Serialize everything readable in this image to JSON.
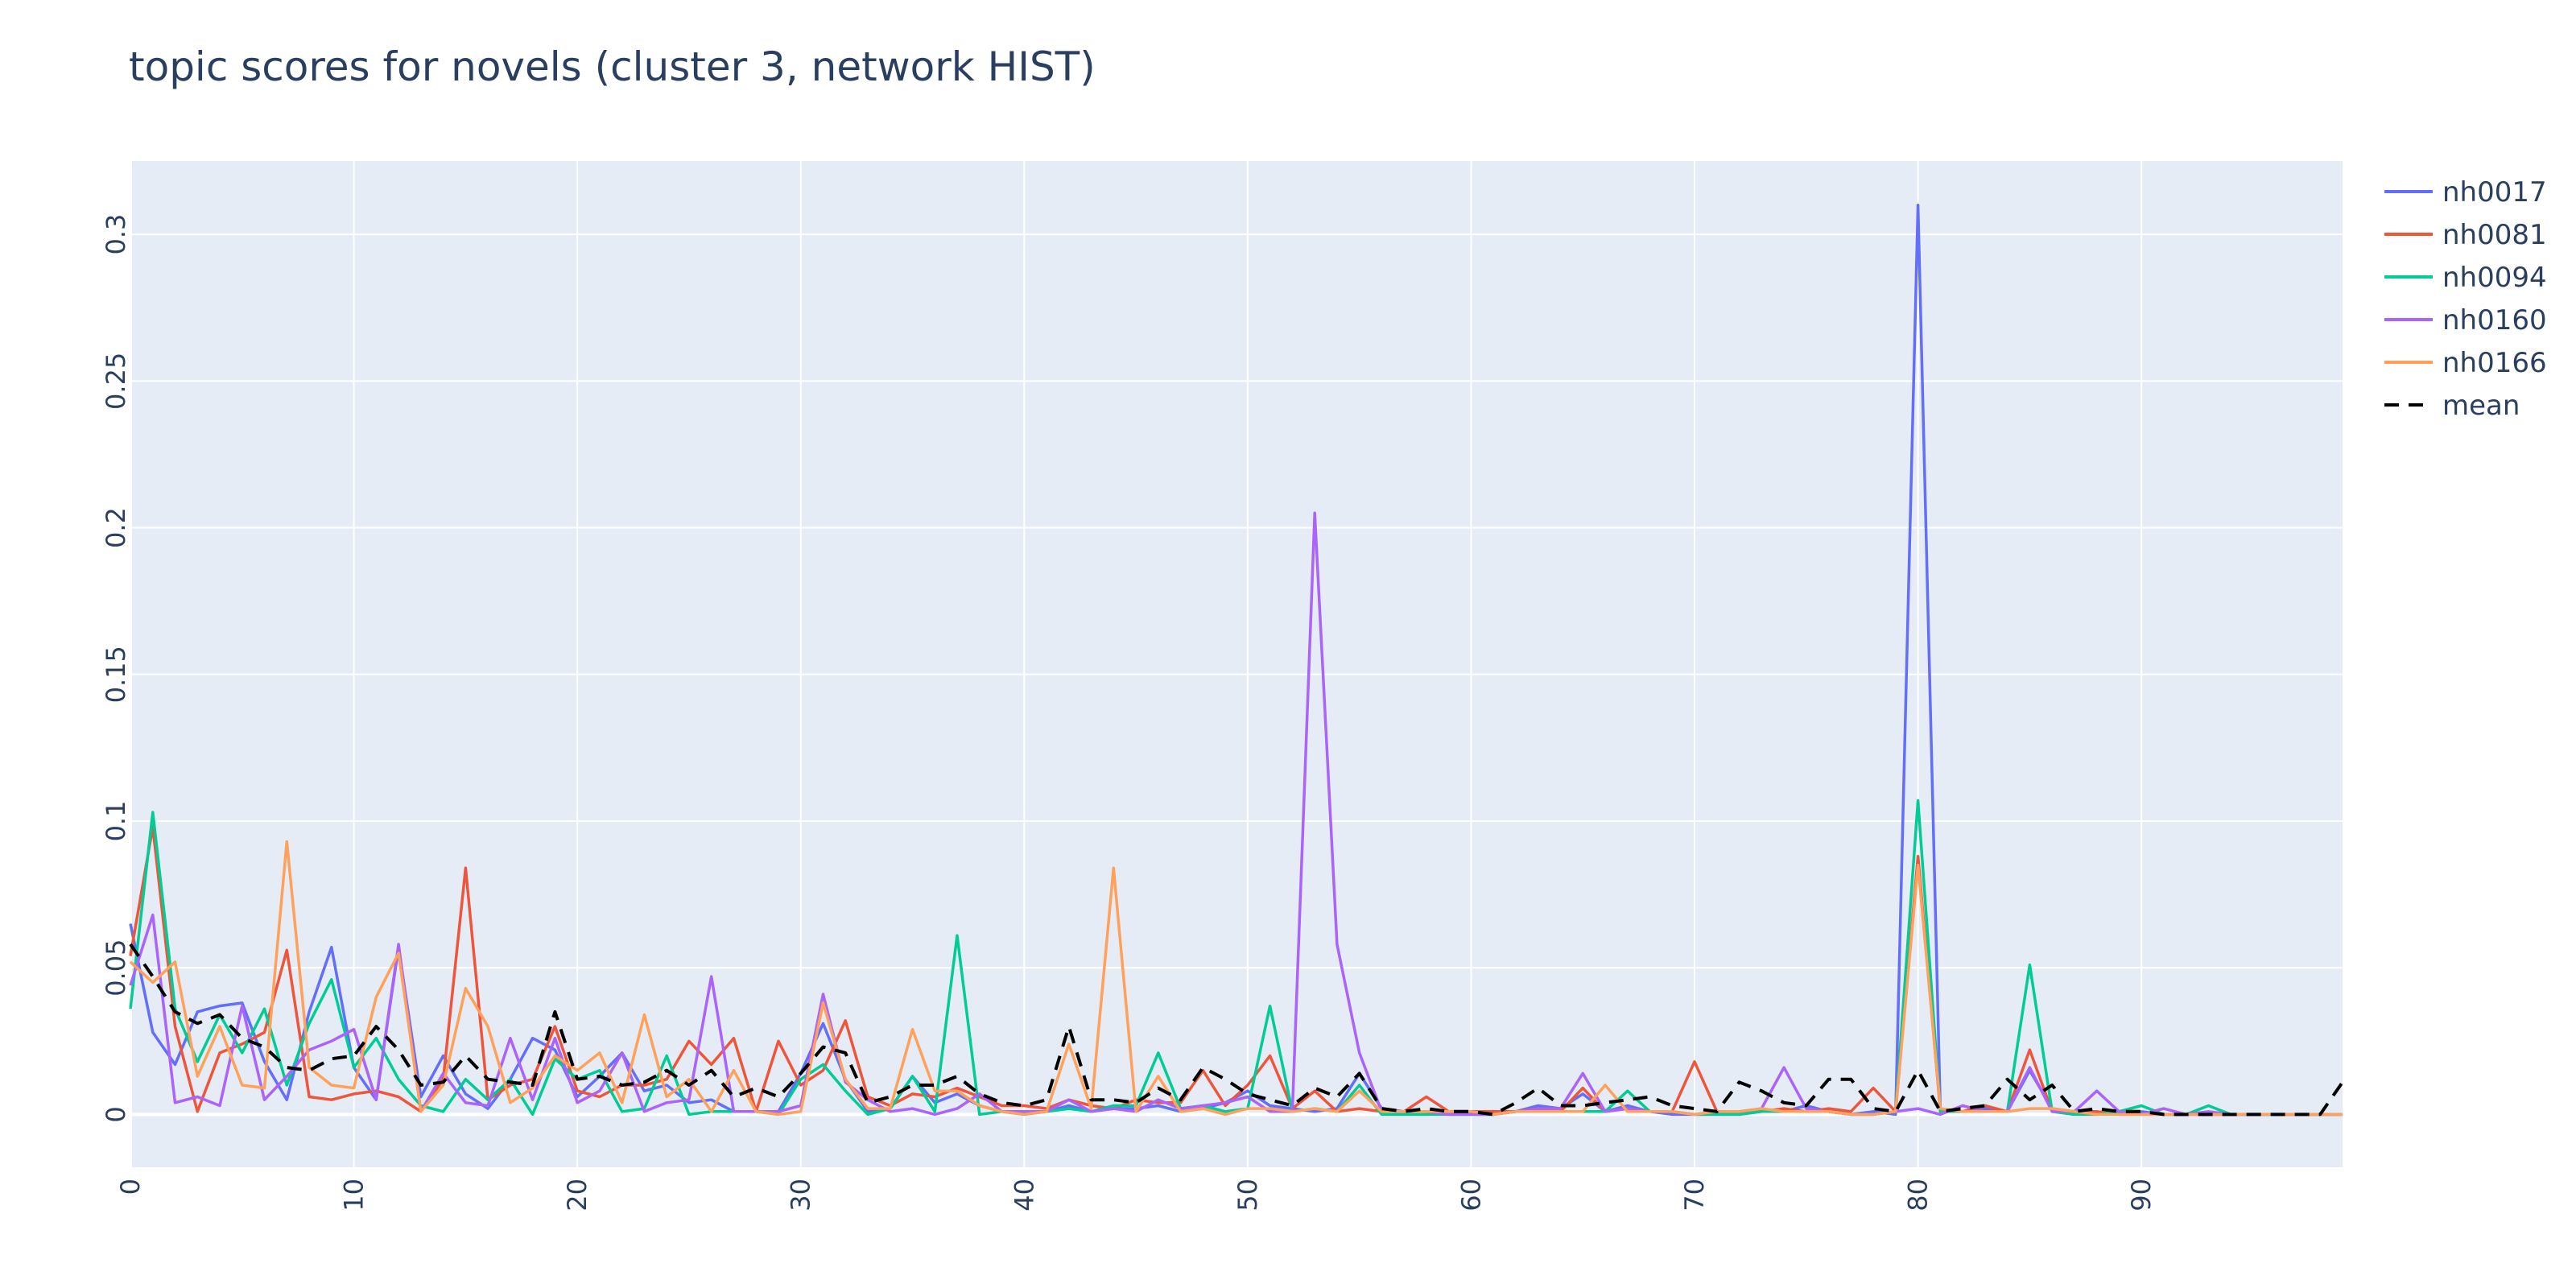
{
  "chart_data": {
    "type": "line",
    "title": "topic scores for novels (cluster 3, network HIST)",
    "xlabel": "",
    "ylabel": "",
    "xlim": [
      0,
      99
    ],
    "ylim": [
      -0.018,
      0.325
    ],
    "xticks": [
      0,
      10,
      20,
      30,
      40,
      50,
      60,
      70,
      80,
      90
    ],
    "yticks": [
      0,
      0.05,
      0.1,
      0.15,
      0.2,
      0.25,
      0.3
    ],
    "ytick_labels": [
      "0",
      "0.05",
      "0.1",
      "0.15",
      "0.2",
      "0.25",
      "0.3"
    ],
    "grid": true,
    "legend_position": "top-right",
    "background": "#e5ecf6",
    "series": [
      {
        "name": "nh0017",
        "color": "#636efa",
        "dash": "solid",
        "values": [
          0.065,
          0.028,
          0.017,
          0.035,
          0.037,
          0.038,
          0.018,
          0.005,
          0.035,
          0.057,
          0.016,
          0.005,
          0.057,
          0.006,
          0.02,
          0.007,
          0.002,
          0.012,
          0.026,
          0.022,
          0.006,
          0.013,
          0.021,
          0.008,
          0.01,
          0.004,
          0.005,
          0.001,
          0.001,
          0.001,
          0.014,
          0.031,
          0.012,
          0.001,
          0.002,
          0.013,
          0.004,
          0.007,
          0.003,
          0.001,
          0.0,
          0.001,
          0.003,
          0.001,
          0.002,
          0.002,
          0.003,
          0.001,
          0.002,
          0.004,
          0.008,
          0.003,
          0.002,
          0.001,
          0.002,
          0.014,
          0.002,
          0.001,
          0.001,
          0.0,
          0.0,
          0.0,
          0.001,
          0.003,
          0.002,
          0.007,
          0.001,
          0.003,
          0.001,
          0.0,
          0.0,
          0.0,
          0.0,
          0.001,
          0.001,
          0.003,
          0.001,
          0.0,
          0.001,
          0.0,
          0.31,
          0.001,
          0.001,
          0.002,
          0.001,
          0.015,
          0.002,
          0.001,
          0.001,
          0.0,
          0.001,
          0.0,
          0.0,
          0.0,
          0.0,
          0.0,
          0.0,
          0.0,
          0.0,
          0.0
        ]
      },
      {
        "name": "nh0081",
        "color": "#ef553b",
        "dash": "solid",
        "values": [
          0.054,
          0.098,
          0.03,
          0.001,
          0.021,
          0.024,
          0.028,
          0.056,
          0.006,
          0.005,
          0.007,
          0.008,
          0.006,
          0.001,
          0.012,
          0.084,
          0.005,
          0.01,
          0.012,
          0.03,
          0.008,
          0.006,
          0.01,
          0.01,
          0.012,
          0.025,
          0.017,
          0.026,
          0.001,
          0.025,
          0.01,
          0.015,
          0.032,
          0.006,
          0.003,
          0.007,
          0.006,
          0.009,
          0.006,
          0.003,
          0.003,
          0.002,
          0.005,
          0.003,
          0.002,
          0.005,
          0.004,
          0.004,
          0.015,
          0.003,
          0.01,
          0.02,
          0.002,
          0.008,
          0.001,
          0.002,
          0.001,
          0.001,
          0.006,
          0.001,
          0.001,
          0.001,
          0.001,
          0.002,
          0.001,
          0.009,
          0.001,
          0.002,
          0.001,
          0.001,
          0.018,
          0.001,
          0.001,
          0.001,
          0.002,
          0.001,
          0.002,
          0.001,
          0.009,
          0.001,
          0.088,
          0.001,
          0.001,
          0.003,
          0.001,
          0.022,
          0.001,
          0.0,
          0.001,
          0.0,
          0.0,
          0.0,
          0.0,
          0.0,
          0.0,
          0.0,
          0.0,
          0.0,
          0.0,
          0.0
        ]
      },
      {
        "name": "nh0094",
        "color": "#00cc96",
        "dash": "solid",
        "values": [
          0.036,
          0.103,
          0.036,
          0.018,
          0.034,
          0.021,
          0.036,
          0.01,
          0.031,
          0.046,
          0.016,
          0.026,
          0.012,
          0.003,
          0.001,
          0.012,
          0.005,
          0.012,
          0.0,
          0.019,
          0.012,
          0.015,
          0.001,
          0.002,
          0.02,
          0.0,
          0.001,
          0.001,
          0.001,
          0.0,
          0.012,
          0.017,
          0.008,
          0.0,
          0.002,
          0.013,
          0.001,
          0.061,
          0.0,
          0.001,
          0.001,
          0.001,
          0.002,
          0.001,
          0.003,
          0.003,
          0.021,
          0.002,
          0.003,
          0.001,
          0.002,
          0.037,
          0.001,
          0.002,
          0.001,
          0.01,
          0.0,
          0.0,
          0.0,
          0.0,
          0.0,
          0.0,
          0.001,
          0.001,
          0.001,
          0.001,
          0.001,
          0.008,
          0.001,
          0.001,
          0.0,
          0.0,
          0.0,
          0.001,
          0.001,
          0.001,
          0.001,
          0.0,
          0.0,
          0.001,
          0.107,
          0.001,
          0.001,
          0.001,
          0.001,
          0.051,
          0.001,
          0.0,
          0.0,
          0.001,
          0.003,
          0.0,
          0.0,
          0.003,
          0.0,
          0.0,
          0.0,
          0.0,
          0.0,
          0.0
        ]
      },
      {
        "name": "nh0160",
        "color": "#ab63fa",
        "dash": "solid",
        "values": [
          0.044,
          0.068,
          0.004,
          0.006,
          0.003,
          0.037,
          0.005,
          0.013,
          0.022,
          0.025,
          0.029,
          0.005,
          0.058,
          0.001,
          0.014,
          0.004,
          0.003,
          0.026,
          0.005,
          0.026,
          0.004,
          0.008,
          0.021,
          0.001,
          0.004,
          0.005,
          0.047,
          0.001,
          0.001,
          0.001,
          0.003,
          0.041,
          0.011,
          0.005,
          0.001,
          0.002,
          0.0,
          0.002,
          0.007,
          0.001,
          0.001,
          0.001,
          0.005,
          0.001,
          0.002,
          0.001,
          0.005,
          0.002,
          0.003,
          0.004,
          0.006,
          0.001,
          0.001,
          0.205,
          0.058,
          0.021,
          0.001,
          0.001,
          0.001,
          0.0,
          0.0,
          0.0,
          0.001,
          0.002,
          0.002,
          0.014,
          0.001,
          0.002,
          0.001,
          0.001,
          0.0,
          0.001,
          0.001,
          0.002,
          0.016,
          0.002,
          0.001,
          0.0,
          0.0,
          0.001,
          0.002,
          0.0,
          0.003,
          0.001,
          0.001,
          0.016,
          0.001,
          0.001,
          0.008,
          0.001,
          0.0,
          0.002,
          0.0,
          0.001,
          0.0,
          0.0,
          0.0,
          0.0,
          0.0,
          0.0
        ]
      },
      {
        "name": "nh0166",
        "color": "#ffa15a",
        "dash": "solid",
        "values": [
          0.052,
          0.045,
          0.052,
          0.013,
          0.03,
          0.01,
          0.009,
          0.093,
          0.016,
          0.01,
          0.009,
          0.04,
          0.055,
          0.001,
          0.01,
          0.043,
          0.03,
          0.004,
          0.009,
          0.02,
          0.015,
          0.021,
          0.004,
          0.034,
          0.006,
          0.012,
          0.001,
          0.015,
          0.001,
          0.0,
          0.001,
          0.038,
          0.012,
          0.002,
          0.002,
          0.029,
          0.008,
          0.008,
          0.003,
          0.001,
          0.0,
          0.001,
          0.024,
          0.002,
          0.084,
          0.001,
          0.013,
          0.001,
          0.002,
          0.0,
          0.002,
          0.002,
          0.001,
          0.002,
          0.001,
          0.008,
          0.001,
          0.001,
          0.001,
          0.001,
          0.001,
          0.0,
          0.001,
          0.001,
          0.001,
          0.001,
          0.01,
          0.001,
          0.001,
          0.001,
          0.0,
          0.001,
          0.001,
          0.002,
          0.001,
          0.001,
          0.001,
          0.0,
          0.0,
          0.001,
          0.085,
          0.002,
          0.001,
          0.001,
          0.001,
          0.002,
          0.002,
          0.001,
          0.0,
          0.0,
          0.0,
          0.0,
          0.0,
          0.0,
          0.0,
          0.0,
          0.0,
          0.0,
          0.0,
          0.0
        ]
      },
      {
        "name": "mean",
        "color": "#000000",
        "dash": "dash",
        "values": [
          0.058,
          0.047,
          0.035,
          0.031,
          0.034,
          0.026,
          0.023,
          0.016,
          0.015,
          0.019,
          0.02,
          0.03,
          0.022,
          0.01,
          0.011,
          0.02,
          0.012,
          0.011,
          0.01,
          0.035,
          0.012,
          0.013,
          0.01,
          0.011,
          0.015,
          0.01,
          0.015,
          0.006,
          0.009,
          0.006,
          0.014,
          0.023,
          0.021,
          0.004,
          0.006,
          0.01,
          0.01,
          0.013,
          0.007,
          0.004,
          0.003,
          0.005,
          0.03,
          0.005,
          0.005,
          0.004,
          0.009,
          0.005,
          0.016,
          0.012,
          0.007,
          0.005,
          0.003,
          0.009,
          0.006,
          0.014,
          0.002,
          0.001,
          0.002,
          0.001,
          0.001,
          0.0,
          0.004,
          0.009,
          0.003,
          0.003,
          0.004,
          0.005,
          0.006,
          0.003,
          0.002,
          0.001,
          0.011,
          0.008,
          0.004,
          0.003,
          0.012,
          0.012,
          0.002,
          0.001,
          0.015,
          0.001,
          0.002,
          0.003,
          0.012,
          0.005,
          0.01,
          0.001,
          0.002,
          0.001,
          0.001,
          0.0,
          0.0,
          0.0,
          0.0,
          0.0,
          0.0,
          0.0,
          0.0,
          0.011
        ]
      }
    ]
  }
}
